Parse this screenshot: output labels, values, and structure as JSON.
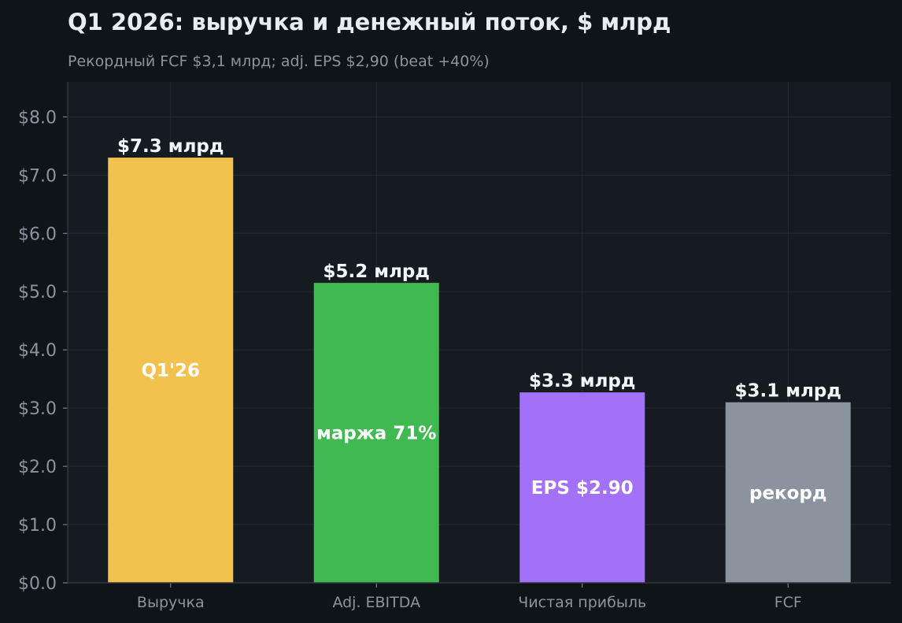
{
  "chart_data": {
    "type": "bar",
    "title": "Q1 2026: выручка и денежный поток, $ млрд",
    "subtitle": "Рекордный FCF $3,1 млрд; adj. EPS $2,90 (beat +40%)",
    "categories": [
      "Выручка",
      "Adj. EBITDA",
      "Чистая прибыль",
      "FCF"
    ],
    "values": [
      7.3,
      5.15,
      3.27,
      3.1
    ],
    "value_labels": [
      "$7.3 млрд",
      "$5.2 млрд",
      "$3.3 млрд",
      "$3.1 млрд"
    ],
    "inner_labels": [
      "Q1'26",
      "маржа 71%",
      "EPS $2.90",
      "рекорд"
    ],
    "colors": [
      "#f2c14e",
      "#3fb950",
      "#a371f7",
      "#8b949e"
    ],
    "ylim": [
      0,
      8.6
    ],
    "yticks": [
      0,
      1,
      2,
      3,
      4,
      5,
      6,
      7,
      8
    ],
    "ytick_labels": [
      "$0.0",
      "$1.0",
      "$2.0",
      "$3.0",
      "$4.0",
      "$5.0",
      "$6.0",
      "$7.0",
      "$8.0"
    ],
    "grid": true
  }
}
